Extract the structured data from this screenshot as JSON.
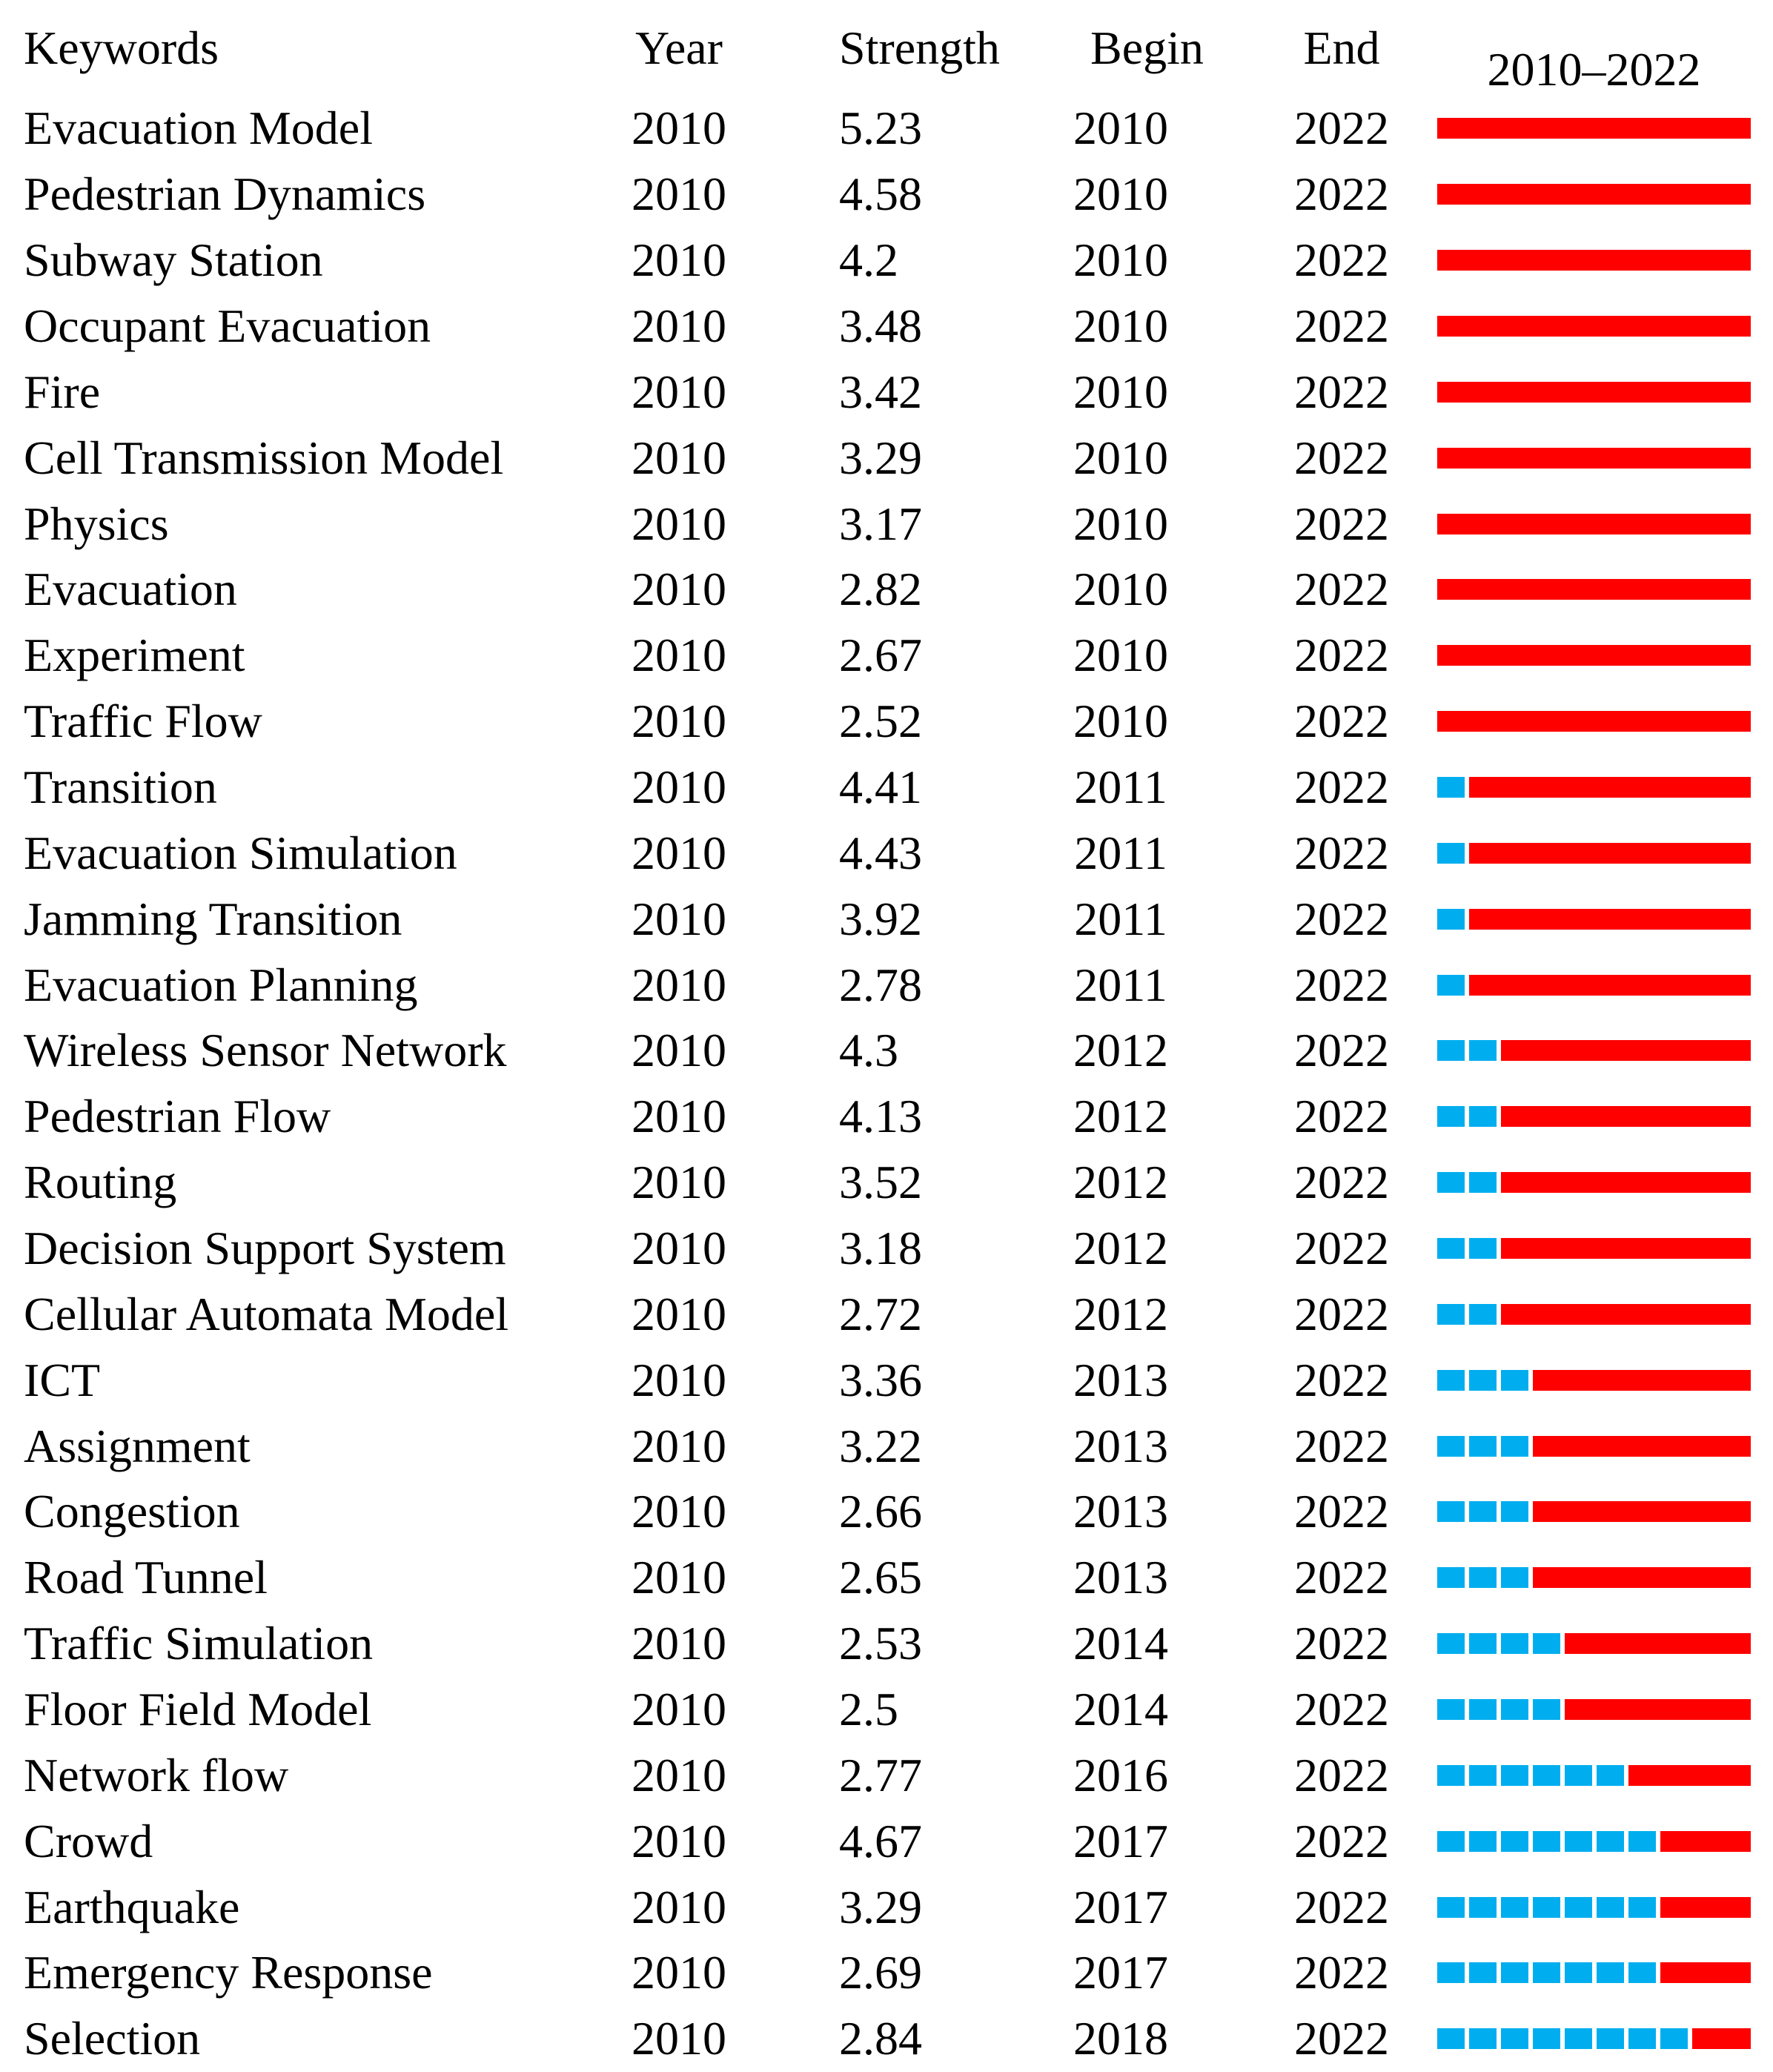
{
  "chart_data": {
    "type": "table",
    "columns": [
      "Keywords",
      "Year",
      "Strength",
      "Begin",
      "End",
      "2010–2022"
    ],
    "timeline": {
      "start": 2010,
      "end": 2022,
      "header": "2010–2022",
      "burst_color": "#FF0000",
      "pre_burst_color": "#00AEEF",
      "encoding": {
        "red_bar": "burst period from Begin year to End year",
        "blue_squares": "years from 2010 before the burst begins"
      }
    },
    "rows": [
      {
        "keyword": "Evacuation Model",
        "year": "2010",
        "strength": "5.23",
        "begin": 2010,
        "end": "2022"
      },
      {
        "keyword": "Pedestrian Dynamics",
        "year": "2010",
        "strength": "4.58",
        "begin": 2010,
        "end": "2022"
      },
      {
        "keyword": "Subway Station",
        "year": "2010",
        "strength": "4.2",
        "begin": 2010,
        "end": "2022"
      },
      {
        "keyword": "Occupant Evacuation",
        "year": "2010",
        "strength": "3.48",
        "begin": 2010,
        "end": "2022"
      },
      {
        "keyword": "Fire",
        "year": "2010",
        "strength": "3.42",
        "begin": 2010,
        "end": "2022"
      },
      {
        "keyword": "Cell Transmission Model",
        "year": "2010",
        "strength": "3.29",
        "begin": 2010,
        "end": "2022"
      },
      {
        "keyword": "Physics",
        "year": "2010",
        "strength": "3.17",
        "begin": 2010,
        "end": "2022"
      },
      {
        "keyword": "Evacuation",
        "year": "2010",
        "strength": "2.82",
        "begin": 2010,
        "end": "2022"
      },
      {
        "keyword": "Experiment",
        "year": "2010",
        "strength": "2.67",
        "begin": 2010,
        "end": "2022"
      },
      {
        "keyword": "Traffic Flow",
        "year": "2010",
        "strength": "2.52",
        "begin": 2010,
        "end": "2022"
      },
      {
        "keyword": "Transition",
        "year": "2010",
        "strength": "4.41",
        "begin": 2011,
        "end": "2022"
      },
      {
        "keyword": "Evacuation Simulation",
        "year": "2010",
        "strength": "4.43",
        "begin": 2011,
        "end": "2022"
      },
      {
        "keyword": "Jamming Transition",
        "year": "2010",
        "strength": "3.92",
        "begin": 2011,
        "end": "2022"
      },
      {
        "keyword": "Evacuation Planning",
        "year": "2010",
        "strength": "2.78",
        "begin": 2011,
        "end": "2022"
      },
      {
        "keyword": "Wireless Sensor Network",
        "year": "2010",
        "strength": "4.3",
        "begin": 2012,
        "end": "2022"
      },
      {
        "keyword": "Pedestrian Flow",
        "year": "2010",
        "strength": "4.13",
        "begin": 2012,
        "end": "2022"
      },
      {
        "keyword": "Routing",
        "year": "2010",
        "strength": "3.52",
        "begin": 2012,
        "end": "2022"
      },
      {
        "keyword": "Decision Support System",
        "year": "2010",
        "strength": "3.18",
        "begin": 2012,
        "end": "2022"
      },
      {
        "keyword": "Cellular Automata Model",
        "year": "2010",
        "strength": "2.72",
        "begin": 2012,
        "end": "2022"
      },
      {
        "keyword": "ICT",
        "year": "2010",
        "strength": "3.36",
        "begin": 2013,
        "end": "2022"
      },
      {
        "keyword": "Assignment",
        "year": "2010",
        "strength": "3.22",
        "begin": 2013,
        "end": "2022"
      },
      {
        "keyword": "Congestion",
        "year": "2010",
        "strength": "2.66",
        "begin": 2013,
        "end": "2022"
      },
      {
        "keyword": "Road Tunnel",
        "year": "2010",
        "strength": "2.65",
        "begin": 2013,
        "end": "2022"
      },
      {
        "keyword": "Traffic Simulation",
        "year": "2010",
        "strength": "2.53",
        "begin": 2014,
        "end": "2022"
      },
      {
        "keyword": "Floor Field Model",
        "year": "2010",
        "strength": "2.5",
        "begin": 2014,
        "end": "2022"
      },
      {
        "keyword": "Network flow",
        "year": "2010",
        "strength": "2.77",
        "begin": 2016,
        "end": "2022"
      },
      {
        "keyword": "Crowd",
        "year": "2010",
        "strength": "4.67",
        "begin": 2017,
        "end": "2022"
      },
      {
        "keyword": "Earthquake",
        "year": "2010",
        "strength": "3.29",
        "begin": 2017,
        "end": "2022"
      },
      {
        "keyword": "Emergency Response",
        "year": "2010",
        "strength": "2.69",
        "begin": 2017,
        "end": "2022"
      },
      {
        "keyword": "Selection",
        "year": "2010",
        "strength": "2.84",
        "begin": 2018,
        "end": "2022"
      }
    ]
  }
}
